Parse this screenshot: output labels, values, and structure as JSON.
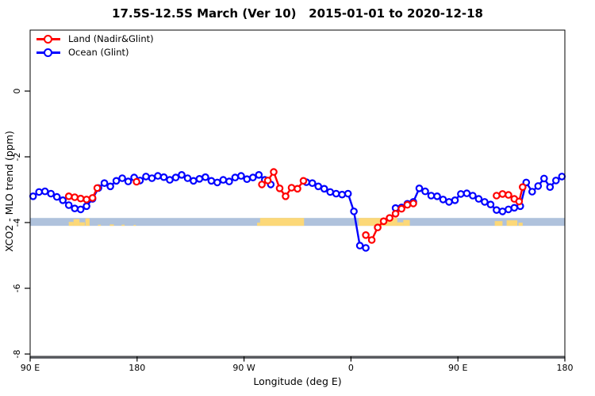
{
  "title": "17.5S-12.5S March (Ver 10)   2015-01-01 to 2020-12-18",
  "axes": {
    "x_label": "Longitude (deg E)",
    "y_label": "XCO2 - MLO trend (ppm)"
  },
  "legend": {
    "items": [
      {
        "label": "Land (Nadir&Glint)",
        "color": "#ff0000"
      },
      {
        "label": "Ocean (Glint)",
        "color": "#0000ff"
      }
    ]
  },
  "chart_data": {
    "type": "line",
    "title": "17.5S-12.5S March (Ver 10)   2015-01-01 to 2020-12-18",
    "xlabel": "Longitude (deg E)",
    "ylabel": "XCO2 - MLO trend (ppm)",
    "grid": false,
    "legend_position": "top-left",
    "x_axis": {
      "note": "longitude unwrapped eastward from 90E; u = degrees east of Greenwich measured continuously 90..540",
      "xlim": [
        90,
        540
      ],
      "ticks": [
        {
          "u": 90,
          "label": "90 E"
        },
        {
          "u": 180,
          "label": "180"
        },
        {
          "u": 270,
          "label": "90 W"
        },
        {
          "u": 360,
          "label": "0"
        },
        {
          "u": 450,
          "label": "90 E"
        },
        {
          "u": 540,
          "label": "180"
        }
      ]
    },
    "y_axis": {
      "ylim": [
        -8.1,
        1.85
      ],
      "ticks": [
        {
          "v": 0,
          "label": "0"
        },
        {
          "v": -2,
          "label": "-2"
        },
        {
          "v": -4,
          "label": "-4"
        },
        {
          "v": -6,
          "label": "-6"
        },
        {
          "v": -8,
          "label": "-8"
        }
      ]
    },
    "surface_band": {
      "top_v": -3.86,
      "bottom_v": -4.1,
      "ocean_color": "#afc2dc",
      "land_color": "#fcd878",
      "land_segments": [
        {
          "u0": 122.5,
          "u1": 126.5,
          "frac": 0.5
        },
        {
          "u0": 126.5,
          "u1": 131.5,
          "frac": 0.85
        },
        {
          "u0": 131.5,
          "u1": 136.0,
          "frac": 0.45
        },
        {
          "u0": 136.5,
          "u1": 140.0,
          "frac": 0.95
        },
        {
          "u0": 147.0,
          "u1": 149.5,
          "frac": 0.15
        },
        {
          "u0": 157.0,
          "u1": 160.5,
          "frac": 0.18
        },
        {
          "u0": 167.0,
          "u1": 169.5,
          "frac": 0.15
        },
        {
          "u0": 177.0,
          "u1": 179.0,
          "frac": 0.12
        },
        {
          "u0": 281.0,
          "u1": 283.5,
          "frac": 0.4
        },
        {
          "u0": 283.5,
          "u1": 320.5,
          "frac": 1.0
        },
        {
          "u0": 366.5,
          "u1": 399.0,
          "frac": 1.0
        },
        {
          "u0": 399.0,
          "u1": 404.0,
          "frac": 0.45
        },
        {
          "u0": 404.0,
          "u1": 409.5,
          "frac": 0.75
        },
        {
          "u0": 481.0,
          "u1": 487.5,
          "frac": 0.6
        },
        {
          "u0": 491.0,
          "u1": 500.0,
          "frac": 0.7
        },
        {
          "u0": 501.0,
          "u1": 504.5,
          "frac": 0.4
        }
      ]
    },
    "series": [
      {
        "name": "Land (Nadir&Glint)",
        "color": "#ff0000",
        "marker": "open-circle",
        "segments": [
          [
            [
              122.5,
              -3.2
            ],
            [
              127.5,
              -3.23
            ],
            [
              132.5,
              -3.27
            ],
            [
              137.5,
              -3.3
            ],
            [
              142.5,
              -3.25
            ],
            [
              146.5,
              -2.95
            ]
          ],
          [
            [
              179.5,
              -2.76
            ]
          ],
          [
            [
              285,
              -2.84
            ],
            [
              290,
              -2.72
            ],
            [
              295,
              -2.46
            ],
            [
              300,
              -2.96
            ],
            [
              305,
              -3.2
            ],
            [
              310,
              -2.94
            ],
            [
              315,
              -2.97
            ],
            [
              320,
              -2.73
            ]
          ],
          [
            [
              372.5,
              -4.38
            ],
            [
              377.5,
              -4.53
            ],
            [
              382.5,
              -4.15
            ],
            [
              387.5,
              -3.96
            ],
            [
              392.5,
              -3.86
            ],
            [
              397.5,
              -3.73
            ],
            [
              402.5,
              -3.58
            ],
            [
              407.5,
              -3.46
            ],
            [
              412.5,
              -3.42
            ]
          ],
          [
            [
              482.5,
              -3.18
            ],
            [
              487.5,
              -3.13
            ],
            [
              492.5,
              -3.16
            ],
            [
              497.5,
              -3.28
            ],
            [
              501.5,
              -3.36
            ],
            [
              504.5,
              -2.92
            ]
          ]
        ]
      },
      {
        "name": "Ocean (Glint)",
        "color": "#0000ff",
        "marker": "open-circle",
        "segments": [
          [
            [
              92.5,
              -3.2
            ],
            [
              97.5,
              -3.07
            ],
            [
              102.5,
              -3.05
            ],
            [
              107.5,
              -3.12
            ],
            [
              112.5,
              -3.22
            ],
            [
              117.5,
              -3.32
            ],
            [
              122.5,
              -3.47
            ],
            [
              127.5,
              -3.57
            ],
            [
              132.5,
              -3.6
            ],
            [
              137.5,
              -3.5
            ],
            [
              142.5,
              -3.28
            ],
            [
              147.5,
              -2.95
            ],
            [
              152.5,
              -2.8
            ],
            [
              157.5,
              -2.9
            ],
            [
              162.5,
              -2.73
            ],
            [
              167.5,
              -2.65
            ],
            [
              172.5,
              -2.75
            ],
            [
              177.5,
              -2.63
            ],
            [
              182.5,
              -2.72
            ],
            [
              187.5,
              -2.6
            ],
            [
              192.5,
              -2.65
            ],
            [
              197.5,
              -2.58
            ],
            [
              202.5,
              -2.62
            ],
            [
              207.5,
              -2.7
            ],
            [
              212.5,
              -2.63
            ],
            [
              217.5,
              -2.55
            ],
            [
              222.5,
              -2.65
            ],
            [
              227.5,
              -2.73
            ],
            [
              232.5,
              -2.67
            ],
            [
              237.5,
              -2.62
            ],
            [
              242.5,
              -2.73
            ],
            [
              247.5,
              -2.78
            ],
            [
              252.5,
              -2.7
            ],
            [
              257.5,
              -2.75
            ],
            [
              262.5,
              -2.63
            ],
            [
              267.5,
              -2.58
            ],
            [
              272.5,
              -2.68
            ],
            [
              277.5,
              -2.63
            ],
            [
              282.5,
              -2.55
            ],
            [
              287.5,
              -2.7
            ],
            [
              292.5,
              -2.84
            ]
          ],
          [
            [
              322.5,
              -2.77
            ],
            [
              327.5,
              -2.8
            ],
            [
              332.5,
              -2.9
            ],
            [
              337.5,
              -2.97
            ],
            [
              342.5,
              -3.07
            ],
            [
              347.5,
              -3.12
            ],
            [
              352.5,
              -3.15
            ],
            [
              357.5,
              -3.12
            ],
            [
              362.5,
              -3.66
            ],
            [
              367.5,
              -4.7
            ],
            [
              372.5,
              -4.77
            ]
          ],
          [
            [
              397.5,
              -3.56
            ],
            [
              402.5,
              -3.54
            ],
            [
              407.5,
              -3.43
            ],
            [
              412.5,
              -3.37
            ],
            [
              417.5,
              -2.96
            ],
            [
              422.5,
              -3.05
            ],
            [
              427.5,
              -3.18
            ],
            [
              432.5,
              -3.2
            ],
            [
              437.5,
              -3.3
            ],
            [
              442.5,
              -3.37
            ],
            [
              447.5,
              -3.32
            ],
            [
              452.5,
              -3.13
            ],
            [
              457.5,
              -3.11
            ],
            [
              462.5,
              -3.18
            ],
            [
              467.5,
              -3.28
            ],
            [
              472.5,
              -3.37
            ],
            [
              477.5,
              -3.45
            ],
            [
              482.5,
              -3.62
            ],
            [
              487.5,
              -3.66
            ],
            [
              492.5,
              -3.6
            ],
            [
              497.5,
              -3.55
            ],
            [
              502.5,
              -3.5
            ],
            [
              507.5,
              -2.78
            ],
            [
              512.5,
              -3.06
            ],
            [
              517.5,
              -2.89
            ],
            [
              522.5,
              -2.66
            ],
            [
              527.5,
              -2.92
            ],
            [
              532.5,
              -2.72
            ],
            [
              537.5,
              -2.6
            ]
          ]
        ]
      }
    ],
    "axis_style": {
      "frame_color": "#000000",
      "baseline_color": "#54575b"
    }
  }
}
